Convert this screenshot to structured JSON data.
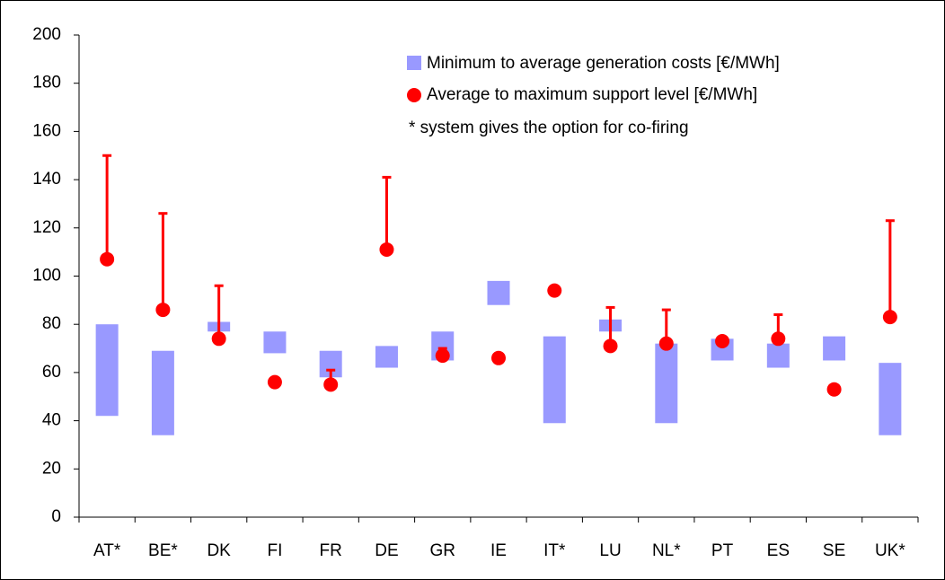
{
  "chart_data": {
    "type": "range-support",
    "categories": [
      "AT*",
      "BE*",
      "DK",
      "FI",
      "FR",
      "DE",
      "GR",
      "IE",
      "IT*",
      "LU",
      "NL*",
      "PT",
      "ES",
      "SE",
      "UK*"
    ],
    "series": [
      {
        "name": "Minimum to average generation costs [€/MWh]",
        "color": "#9999ff",
        "low": [
          42,
          34,
          77,
          68,
          58,
          62,
          65,
          88,
          39,
          77,
          39,
          65,
          62,
          65,
          34
        ],
        "high": [
          80,
          69,
          81,
          77,
          69,
          71,
          77,
          98,
          75,
          82,
          72,
          74,
          72,
          75,
          64
        ]
      },
      {
        "name": "Average to maximum support level [€/MWh]",
        "color": "#ff0000",
        "values": [
          107,
          86,
          74,
          56,
          55,
          111,
          67,
          66,
          94,
          71,
          72,
          73,
          74,
          53,
          83
        ],
        "max": [
          150,
          126,
          96,
          null,
          61,
          141,
          70,
          null,
          null,
          87,
          86,
          null,
          84,
          null,
          123
        ]
      }
    ],
    "annotation": "* system gives the option for co-firing",
    "ylim": [
      0,
      200
    ],
    "yticks": [
      0,
      20,
      40,
      60,
      80,
      100,
      120,
      140,
      160,
      180,
      200
    ]
  }
}
